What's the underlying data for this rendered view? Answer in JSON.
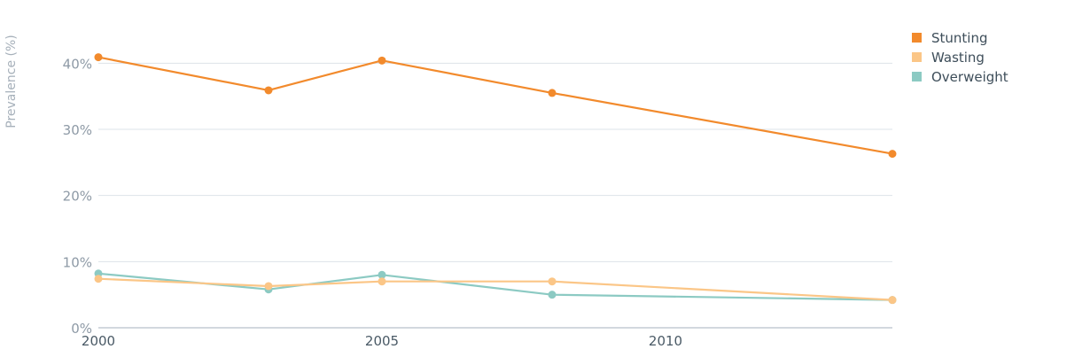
{
  "chart_data": {
    "type": "line",
    "ylabel": "Prevalence (%)",
    "ylim": [
      0,
      45
    ],
    "xlim": [
      2000,
      2014
    ],
    "y_ticks": [
      {
        "value": 0,
        "label": "0%"
      },
      {
        "value": 10,
        "label": "10%"
      },
      {
        "value": 20,
        "label": "20%"
      },
      {
        "value": 30,
        "label": "30%"
      },
      {
        "value": 40,
        "label": "40%"
      }
    ],
    "x_ticks": [
      {
        "value": 2000,
        "label": "2000"
      },
      {
        "value": 2005,
        "label": "2005"
      },
      {
        "value": 2010,
        "label": "2010"
      }
    ],
    "grid": true,
    "legend_position": "top-right",
    "series": [
      {
        "name": "Stunting",
        "color": "#f28a2c",
        "x": [
          2000,
          2003,
          2005,
          2008,
          2014
        ],
        "values": [
          40.9,
          35.9,
          40.4,
          35.5,
          26.3
        ]
      },
      {
        "name": "Wasting",
        "color": "#fbc687",
        "x": [
          2000,
          2003,
          2005,
          2008,
          2014
        ],
        "values": [
          7.4,
          6.3,
          7.0,
          7.0,
          4.2
        ]
      },
      {
        "name": "Overweight",
        "color": "#8ccac3",
        "x": [
          2000,
          2003,
          2005,
          2008,
          2014
        ],
        "values": [
          8.2,
          5.8,
          8.0,
          5.0,
          4.2
        ]
      }
    ]
  }
}
